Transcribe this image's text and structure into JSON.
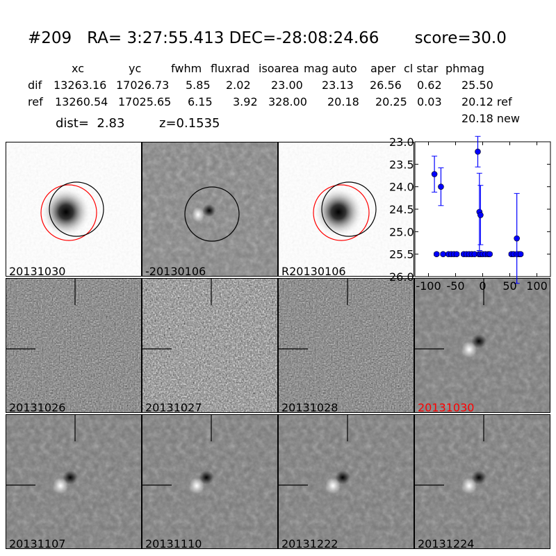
{
  "title": "#209   RA= 3:27:55.413 DEC=-28:08:24.66       score=30.0",
  "table": {
    "header": "xc",
    "columns": [
      "xc",
      "yc",
      "fwhm",
      "fluxrad",
      "isoarea",
      "mag auto",
      "aper",
      "cl star",
      "phmag"
    ],
    "rows": [
      {
        "label": "dif",
        "values": [
          "13263.16",
          "17026.73",
          "5.85",
          "2.02",
          "23.00",
          "23.13",
          "26.56",
          "0.62",
          "25.50"
        ]
      },
      {
        "label": "ref",
        "values": [
          "13260.54",
          "17025.65",
          "6.15",
          "3.92",
          "328.00",
          "20.18",
          "20.25",
          "0.03",
          "20.12 ref"
        ]
      }
    ],
    "extra": "20.18 new",
    "dist": "dist=  2.83",
    "z": "z=0.1535"
  },
  "panels": [
    {
      "label": "20131030",
      "style": "ref"
    },
    {
      "label": "-20130106",
      "style": "diff"
    },
    {
      "label": "R20130106",
      "style": "ref"
    },
    {
      "label": "20131026",
      "style": "noisy"
    },
    {
      "label": "20131027",
      "style": "verynoisy"
    },
    {
      "label": "20131028",
      "style": "noisy"
    },
    {
      "label": "20131030",
      "style": "smooth",
      "color": "#ff0000"
    },
    {
      "label": "20131107",
      "style": "smooth"
    },
    {
      "label": "20131110",
      "style": "smooth"
    },
    {
      "label": "20131222",
      "style": "smooth"
    },
    {
      "label": "20131224",
      "style": "smooth"
    }
  ],
  "chart_data": {
    "type": "scatter",
    "xlim": [
      -125,
      125
    ],
    "ylim": [
      26.0,
      23.0
    ],
    "y_inverted": true,
    "xticks": [
      -100,
      -50,
      0,
      50,
      100
    ],
    "yticks": [
      23.0,
      23.5,
      24.0,
      24.5,
      25.0,
      25.5,
      26.0
    ],
    "color": "#0000ff",
    "points": [
      {
        "x": -89,
        "y": 23.72,
        "err": 0.4
      },
      {
        "x": -77,
        "y": 24.0,
        "err": 0.42
      },
      {
        "x": -9,
        "y": 23.22,
        "err": 0.34
      },
      {
        "x": -6,
        "y": 24.56,
        "err": 0.86
      },
      {
        "x": -4,
        "y": 24.63,
        "err": 0.66
      },
      {
        "x": 63,
        "y": 25.15,
        "err": 1.0
      }
    ],
    "limits": {
      "y": 25.5,
      "x": [
        -85,
        -73,
        -63,
        -58,
        -53,
        -48,
        -35,
        -30,
        -25,
        -20,
        -15,
        -7,
        -4,
        0,
        5,
        10,
        13,
        53,
        57,
        63,
        67,
        70
      ]
    }
  }
}
